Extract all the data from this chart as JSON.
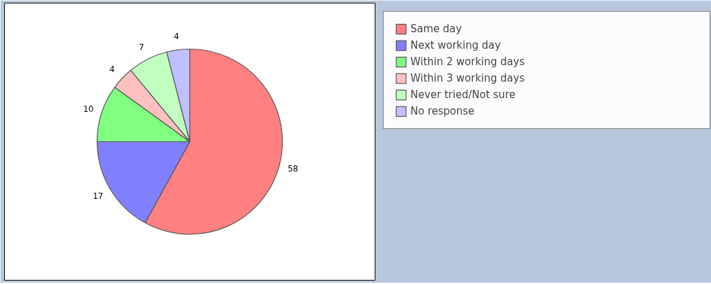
{
  "chart_data": {
    "type": "pie",
    "categories": [
      "Same day",
      "Next working day",
      "Within 2 working days",
      "Within 3 working days",
      "Never tried/Not sure",
      "No response"
    ],
    "values": [
      58,
      17,
      10,
      4,
      7,
      4
    ],
    "colors": [
      "#ff8080",
      "#8080ff",
      "#80ff80",
      "#ffc0c0",
      "#c0ffc0",
      "#c0c0ff"
    ],
    "data_labels": true,
    "legend": "right"
  }
}
